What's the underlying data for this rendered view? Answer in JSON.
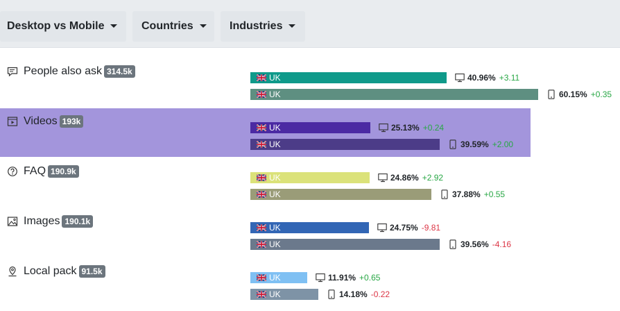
{
  "filters": [
    {
      "label": "Desktop vs Mobile"
    },
    {
      "label": "Countries"
    },
    {
      "label": "Industries"
    }
  ],
  "features": [
    {
      "name": "People also ask",
      "count": "314.5k",
      "icon": "chat-bubble-icon",
      "desktop": {
        "country": "UK",
        "share": 40.96,
        "pct": "40.96%",
        "change": "+3.11",
        "trend": "up",
        "color": "#0f9a8a"
      },
      "mobile": {
        "country": "UK",
        "share": 60.15,
        "pct": "60.15%",
        "change": "+0.35",
        "trend": "up",
        "color": "#5e8f81"
      }
    },
    {
      "name": "Videos",
      "count": "193k",
      "icon": "video-player-icon",
      "highlighted": true,
      "desktop": {
        "country": "UK",
        "share": 25.13,
        "pct": "25.13%",
        "change": "+0.24",
        "trend": "up",
        "color": "#4b2aa3"
      },
      "mobile": {
        "country": "UK",
        "share": 39.59,
        "pct": "39.59%",
        "change": "+2.00",
        "trend": "up",
        "color": "#4c3c88"
      }
    },
    {
      "name": "FAQ",
      "count": "190.9k",
      "icon": "question-circle-icon",
      "desktop": {
        "country": "UK",
        "share": 24.86,
        "pct": "24.86%",
        "change": "+2.92",
        "trend": "up",
        "color": "#dbe27a"
      },
      "mobile": {
        "country": "UK",
        "share": 37.88,
        "pct": "37.88%",
        "change": "+0.55",
        "trend": "up",
        "color": "#9a9c78"
      }
    },
    {
      "name": "Images",
      "count": "190.1k",
      "icon": "image-icon",
      "desktop": {
        "country": "UK",
        "share": 24.75,
        "pct": "24.75%",
        "change": "-9.81",
        "trend": "down",
        "color": "#3266b5"
      },
      "mobile": {
        "country": "UK",
        "share": 39.56,
        "pct": "39.56%",
        "change": "-4.16",
        "trend": "down",
        "color": "#6b798c"
      }
    },
    {
      "name": "Local pack",
      "count": "91.5k",
      "icon": "map-pin-icon",
      "desktop": {
        "country": "UK",
        "share": 11.91,
        "pct": "11.91%",
        "change": "+0.65",
        "trend": "up",
        "color": "#7fc0f3"
      },
      "mobile": {
        "country": "UK",
        "share": 14.18,
        "pct": "14.18%",
        "change": "-0.22",
        "trend": "down",
        "color": "#7e93a6"
      }
    }
  ]
}
